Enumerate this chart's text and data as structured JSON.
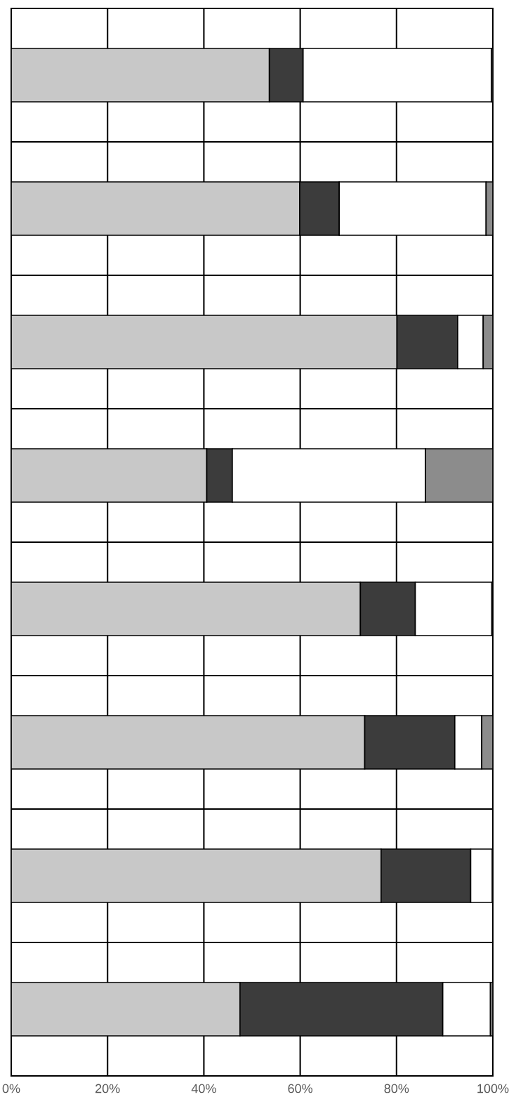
{
  "chart_data": {
    "type": "bar",
    "orientation": "horizontal",
    "stacked": true,
    "categories": [
      null,
      null,
      null,
      null,
      null,
      null,
      null,
      null
    ],
    "series": [
      {
        "color": "#c8c8c8",
        "values": [
          53.6,
          59.9,
          80.1,
          40.6,
          72.5,
          73.4,
          76.8,
          47.5
        ]
      },
      {
        "color": "#3c3c3c",
        "values": [
          7.0,
          8.2,
          12.6,
          5.3,
          11.4,
          18.7,
          18.6,
          42.1
        ]
      },
      {
        "color": "#ffffff",
        "values": [
          39.1,
          30.5,
          5.3,
          40.1,
          15.9,
          5.6,
          4.5,
          9.9
        ]
      },
      {
        "color": "#8c8c8c",
        "values": [
          0.3,
          1.4,
          2.0,
          14.0,
          0.2,
          2.3,
          null,
          0.5
        ]
      }
    ],
    "xlim": [
      0,
      100
    ],
    "xticks": [
      {
        "value": 0,
        "label": "0%"
      },
      {
        "value": 20,
        "label": "20%"
      },
      {
        "value": 40,
        "label": "40%"
      },
      {
        "value": 60,
        "label": "60%"
      },
      {
        "value": 80,
        "label": "80%"
      },
      {
        "value": 100,
        "label": "100%"
      }
    ],
    "tick_labels": "x",
    "grid": true
  }
}
